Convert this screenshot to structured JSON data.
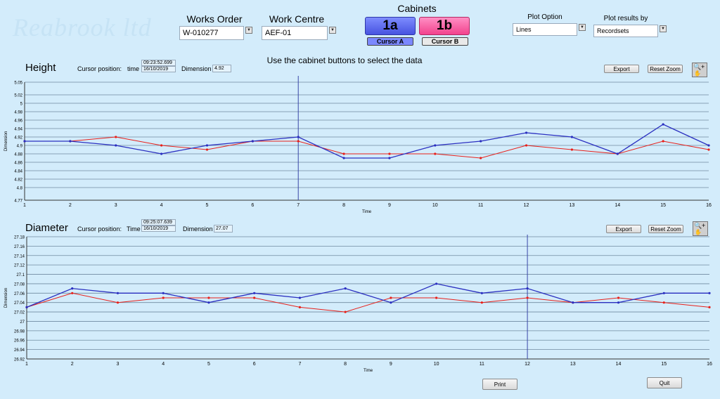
{
  "watermark": "Reabrook ltd",
  "works_order": {
    "label": "Works Order",
    "value": "W-010277"
  },
  "work_centre": {
    "label": "Work Centre",
    "value": "AEF-01"
  },
  "cabinets": {
    "label": "Cabinets",
    "btn_a": "1a",
    "btn_b": "1b",
    "cursor_a": "Cursor A",
    "cursor_b": "Cursor B"
  },
  "plot_option": {
    "label": "Plot Option",
    "value": "Lines"
  },
  "plot_results": {
    "label": "Plot results by",
    "value": "Recordsets"
  },
  "instruction": "Use the cabinet buttons to select the data",
  "height_panel": {
    "title": "Height",
    "cursor_label": "Cursor position:",
    "time_label": "time",
    "time_value": "09:23:52.699",
    "date_value": "16/10/2019",
    "dim_label": "Dimension",
    "dim_value": "4.92",
    "export": "Export",
    "reset": "Reset Zoom"
  },
  "diameter_panel": {
    "title": "Diameter",
    "cursor_label": "Cursor position:",
    "time_label": "Time",
    "time_value": "09:25:07.639",
    "date_value": "16/10/2019",
    "dim_label": "Dimension",
    "dim_value": "27.07",
    "export": "Export",
    "reset": "Reset Zoom"
  },
  "print": "Print",
  "quit": "Quit",
  "colors": {
    "series_red": "#e8201a",
    "series_blue": "#2a2fc0",
    "cursor": "#3a46a8"
  },
  "chart_data": [
    {
      "type": "line",
      "xlabel": "Time",
      "ylabel": "Dimension",
      "x": [
        1,
        2,
        3,
        4,
        5,
        6,
        7,
        8,
        9,
        10,
        11,
        12,
        13,
        14,
        15,
        16
      ],
      "ylim": [
        4.77,
        5.05
      ],
      "yticks": [
        "5.05",
        "5.02",
        "5",
        "4.98",
        "4.96",
        "4.94",
        "4.92",
        "4.9",
        "4.88",
        "4.86",
        "4.84",
        "4.82",
        "4.8",
        "4.77"
      ],
      "ytick_values": [
        5.05,
        5.02,
        5.0,
        4.98,
        4.96,
        4.94,
        4.92,
        4.9,
        4.88,
        4.86,
        4.84,
        4.82,
        4.8,
        4.77
      ],
      "cursor_x": 7,
      "series": [
        {
          "values": [
            4.91,
            4.91,
            4.92,
            4.9,
            4.89,
            4.91,
            4.91,
            4.88,
            4.88,
            4.88,
            4.87,
            4.9,
            4.89,
            4.88,
            4.91,
            4.89
          ]
        },
        {
          "values": [
            4.91,
            4.91,
            4.9,
            4.88,
            4.9,
            4.91,
            4.92,
            4.87,
            4.87,
            4.9,
            4.91,
            4.93,
            4.92,
            4.88,
            4.95,
            4.9
          ]
        }
      ]
    },
    {
      "type": "line",
      "xlabel": "Time",
      "ylabel": "Dimension",
      "x": [
        1,
        2,
        3,
        4,
        5,
        6,
        7,
        8,
        9,
        10,
        11,
        12,
        13,
        14,
        15,
        16
      ],
      "ylim": [
        26.92,
        27.18
      ],
      "yticks": [
        "27.18",
        "27.16",
        "27.14",
        "27.12",
        "27.1",
        "27.08",
        "27.06",
        "27.04",
        "27.02",
        "27",
        "26.98",
        "26.96",
        "26.94",
        "26.92"
      ],
      "ytick_values": [
        27.18,
        27.16,
        27.14,
        27.12,
        27.1,
        27.08,
        27.06,
        27.04,
        27.02,
        27.0,
        26.98,
        26.96,
        26.94,
        26.92
      ],
      "cursor_x": 12,
      "series": [
        {
          "values": [
            27.03,
            27.06,
            27.04,
            27.05,
            27.05,
            27.05,
            27.03,
            27.02,
            27.05,
            27.05,
            27.04,
            27.05,
            27.04,
            27.05,
            27.04,
            27.03
          ]
        },
        {
          "values": [
            27.03,
            27.07,
            27.06,
            27.06,
            27.04,
            27.06,
            27.05,
            27.07,
            27.04,
            27.08,
            27.06,
            27.07,
            27.04,
            27.04,
            27.06,
            27.06
          ]
        }
      ]
    }
  ]
}
